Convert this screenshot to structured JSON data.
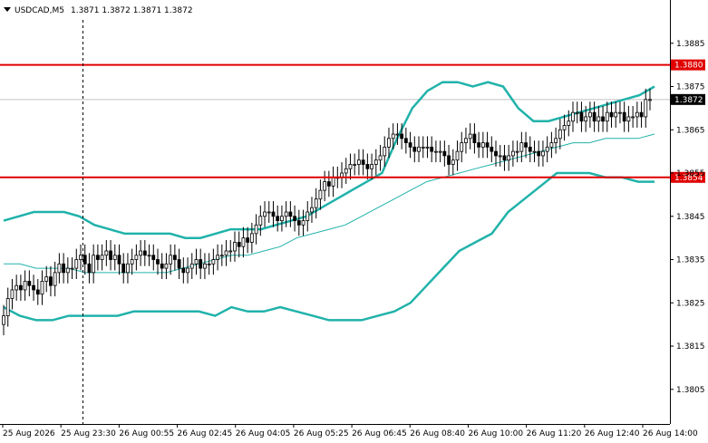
{
  "header": {
    "symbol": "USDCAD,M5",
    "ohlc": "1.3871 1.3872 1.3871 1.3872"
  },
  "colors": {
    "background": "#ffffff",
    "band": "#20b2aa",
    "level_line": "#e00000",
    "price_tag": "#000000",
    "grid_current": "#c0c0c0"
  },
  "icons": {
    "menu": "triangle-down-icon"
  },
  "chart_data": {
    "type": "candlestick",
    "ylim": [
      1.3797,
      1.3895
    ],
    "y_ticks": [
      "1.3885",
      "1.3875",
      "1.3865",
      "1.3855",
      "1.3845",
      "1.3835",
      "1.3825",
      "1.3815",
      "1.3805"
    ],
    "x_ticks": [
      "25 Aug 2026",
      "25 Aug 23:30",
      "26 Aug 00:55",
      "26 Aug 02:45",
      "26 Aug 04:05",
      "26 Aug 05:25",
      "26 Aug 06:45",
      "26 Aug 08:40",
      "26 Aug 10:00",
      "26 Aug 11:20",
      "26 Aug 12:40",
      "26 Aug 14:00"
    ],
    "levels": [
      {
        "value": 1.388,
        "label": "1.3880"
      },
      {
        "value": 1.3854,
        "label": "1.3854"
      }
    ],
    "current_price": {
      "value": 1.3872,
      "label": "1.3872"
    },
    "crosshair_x_label": "25 Aug 23:30",
    "close": [
      1.3822,
      1.3826,
      1.3828,
      1.3829,
      1.3828,
      1.383,
      1.3829,
      1.3828,
      1.3827,
      1.383,
      1.3831,
      1.3829,
      1.3832,
      1.3834,
      1.3832,
      1.3833,
      1.3833,
      1.3835,
      1.3836,
      1.3834,
      1.3832,
      1.3836,
      1.3835,
      1.3836,
      1.3837,
      1.3835,
      1.3836,
      1.3834,
      1.3832,
      1.3834,
      1.3835,
      1.3836,
      1.3837,
      1.3836,
      1.3836,
      1.3835,
      1.3834,
      1.3833,
      1.3834,
      1.3836,
      1.3835,
      1.3833,
      1.3832,
      1.3833,
      1.3834,
      1.3835,
      1.3833,
      1.3834,
      1.3834,
      1.3835,
      1.3836,
      1.3836,
      1.3837,
      1.3837,
      1.3839,
      1.3838,
      1.384,
      1.3839,
      1.3841,
      1.3843,
      1.3845,
      1.3846,
      1.3846,
      1.3845,
      1.3844,
      1.3845,
      1.3846,
      1.3845,
      1.3844,
      1.3843,
      1.3844,
      1.3846,
      1.3847,
      1.3849,
      1.3851,
      1.3853,
      1.3852,
      1.3854,
      1.3854,
      1.3855,
      1.3856,
      1.3857,
      1.3857,
      1.3858,
      1.3857,
      1.3856,
      1.3857,
      1.3858,
      1.3859,
      1.3861,
      1.3863,
      1.3864,
      1.3864,
      1.3863,
      1.3862,
      1.3861,
      1.386,
      1.3861,
      1.3861,
      1.3861,
      1.386,
      1.386,
      1.386,
      1.3859,
      1.3857,
      1.3858,
      1.386,
      1.3862,
      1.3863,
      1.3864,
      1.3862,
      1.3861,
      1.3862,
      1.3861,
      1.386,
      1.3859,
      1.3859,
      1.3858,
      1.3859,
      1.386,
      1.386,
      1.3862,
      1.3861,
      1.386,
      1.386,
      1.3859,
      1.386,
      1.3861,
      1.3862,
      1.3863,
      1.3865,
      1.3866,
      1.3867,
      1.3869,
      1.3869,
      1.3867,
      1.3868,
      1.3869,
      1.3867,
      1.3868,
      1.3867,
      1.3869,
      1.3868,
      1.3869,
      1.3869,
      1.3867,
      1.3868,
      1.3868,
      1.3869,
      1.3868,
      1.3872,
      1.3872
    ],
    "indicators": [
      {
        "name": "Bollinger Upper",
        "values": [
          1.3844,
          1.3845,
          1.3846,
          1.3846,
          1.3846,
          1.3845,
          1.3843,
          1.3842,
          1.3841,
          1.3841,
          1.3841,
          1.3841,
          1.384,
          1.384,
          1.3841,
          1.3842,
          1.3842,
          1.3842,
          1.3843,
          1.3844,
          1.3845,
          1.3847,
          1.3849,
          1.3851,
          1.3853,
          1.3855,
          1.3863,
          1.387,
          1.3874,
          1.3876,
          1.3876,
          1.3875,
          1.3876,
          1.3875,
          1.387,
          1.3867,
          1.3867,
          1.3868,
          1.3869,
          1.387,
          1.3871,
          1.3872,
          1.3873,
          1.3875
        ]
      },
      {
        "name": "Bollinger Middle",
        "values": [
          1.3834,
          1.3834,
          1.3833,
          1.3833,
          1.3833,
          1.3832,
          1.3832,
          1.3832,
          1.3832,
          1.3832,
          1.3832,
          1.3833,
          1.3834,
          1.3835,
          1.3836,
          1.3836,
          1.3837,
          1.3838,
          1.384,
          1.3841,
          1.3842,
          1.3843,
          1.3845,
          1.3847,
          1.3849,
          1.3851,
          1.3853,
          1.3854,
          1.3855,
          1.3856,
          1.3857,
          1.3858,
          1.3859,
          1.386,
          1.3861,
          1.3862,
          1.3862,
          1.3863,
          1.3863,
          1.3863,
          1.3864
        ]
      },
      {
        "name": "Bollinger Lower",
        "values": [
          1.3824,
          1.3822,
          1.3821,
          1.3821,
          1.3822,
          1.3822,
          1.3822,
          1.3822,
          1.3823,
          1.3823,
          1.3823,
          1.3823,
          1.3823,
          1.3822,
          1.3824,
          1.3823,
          1.3823,
          1.3824,
          1.3823,
          1.3822,
          1.3821,
          1.3821,
          1.3821,
          1.3822,
          1.3823,
          1.3825,
          1.3829,
          1.3833,
          1.3837,
          1.3839,
          1.3841,
          1.3846,
          1.3849,
          1.3852,
          1.3855,
          1.3855,
          1.3855,
          1.3854,
          1.3854,
          1.3853,
          1.3853
        ]
      }
    ]
  }
}
